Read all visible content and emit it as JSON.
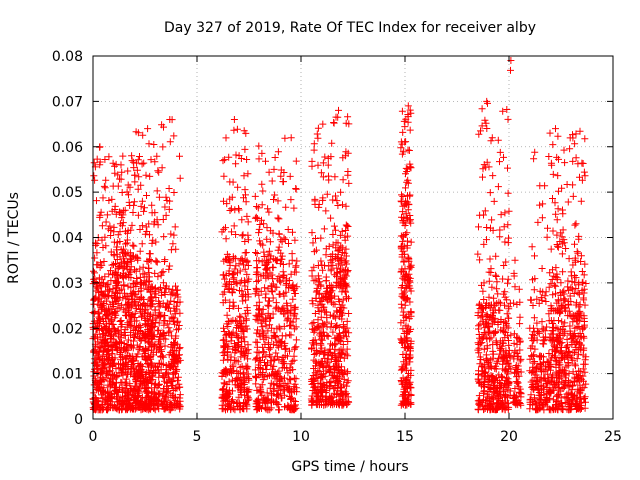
{
  "chart_data": {
    "type": "scatter",
    "title": "Day 327 of 2019, Rate Of TEC Index for receiver alby",
    "xlabel": "GPS time / hours",
    "ylabel": "ROTI / TECUs",
    "xlim": [
      0,
      25
    ],
    "ylim": [
      0,
      0.08
    ],
    "xticks": [
      0,
      5,
      10,
      15,
      20,
      25
    ],
    "xtick_labels": [
      "0",
      "5",
      "10",
      "15",
      "20",
      "25"
    ],
    "yticks": [
      0,
      0.01,
      0.02,
      0.03,
      0.04,
      0.05,
      0.06,
      0.07,
      0.08
    ],
    "ytick_labels": [
      "0",
      "0.01",
      "0.02",
      "0.03",
      "0.04",
      "0.05",
      "0.06",
      "0.07",
      "0.08"
    ],
    "grid": true,
    "marker": "+",
    "color": "#ff0000",
    "clusters": [
      {
        "x": [
          0.0,
          1.0
        ],
        "dense_y": [
          0.002,
          0.03
        ],
        "sparse_y_max": 0.06,
        "count": 420
      },
      {
        "x": [
          1.0,
          2.0
        ],
        "dense_y": [
          0.002,
          0.035
        ],
        "sparse_y_max": 0.058,
        "count": 420
      },
      {
        "x": [
          2.0,
          3.0
        ],
        "dense_y": [
          0.002,
          0.03
        ],
        "sparse_y_max": 0.064,
        "count": 420
      },
      {
        "x": [
          3.0,
          4.2
        ],
        "dense_y": [
          0.002,
          0.028
        ],
        "sparse_y_max": 0.066,
        "count": 320
      },
      {
        "x": [
          6.2,
          7.5
        ],
        "dense_y": [
          0.002,
          0.035
        ],
        "sparse_y_max": 0.066,
        "count": 380
      },
      {
        "x": [
          7.8,
          9.8
        ],
        "dense_y": [
          0.002,
          0.035
        ],
        "sparse_y_max": 0.062,
        "count": 500
      },
      {
        "x": [
          10.5,
          11.5
        ],
        "dense_y": [
          0.003,
          0.03
        ],
        "sparse_y_max": 0.065,
        "count": 300
      },
      {
        "x": [
          11.5,
          12.3
        ],
        "dense_y": [
          0.003,
          0.04
        ],
        "sparse_y_max": 0.068,
        "count": 280
      },
      {
        "x": [
          14.8,
          15.3
        ],
        "dense_y": [
          0.003,
          0.045
        ],
        "sparse_y_max": 0.069,
        "count": 260
      },
      {
        "x": [
          18.5,
          20.0
        ],
        "dense_y": [
          0.002,
          0.025
        ],
        "sparse_y_max": 0.07,
        "count": 420
      },
      {
        "x": [
          19.9,
          20.1
        ],
        "dense_y": [
          0.005,
          0.02
        ],
        "sparse_y_max": 0.079,
        "count": 25
      },
      {
        "x": [
          20.2,
          20.6
        ],
        "dense_y": [
          0.003,
          0.018
        ],
        "sparse_y_max": 0.035,
        "count": 70
      },
      {
        "x": [
          21.0,
          22.0
        ],
        "dense_y": [
          0.002,
          0.02
        ],
        "sparse_y_max": 0.063,
        "count": 200
      },
      {
        "x": [
          22.0,
          23.7
        ],
        "dense_y": [
          0.002,
          0.03
        ],
        "sparse_y_max": 0.064,
        "count": 480
      }
    ]
  }
}
